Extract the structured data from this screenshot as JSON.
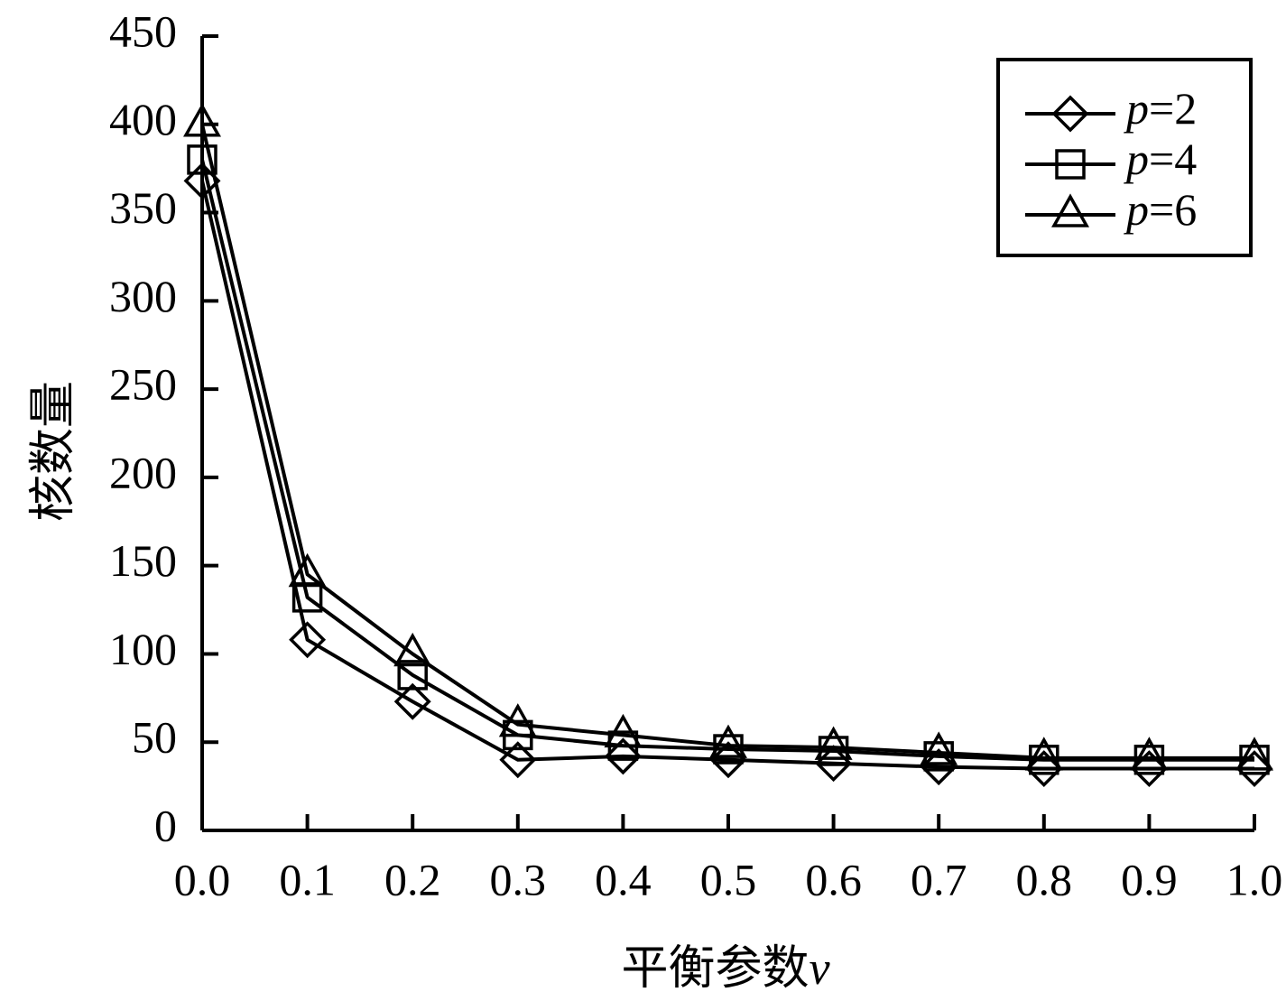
{
  "chart_data": {
    "type": "line",
    "xlabel_main": "平衡参数",
    "xlabel_var": "v",
    "ylabel": "核数量",
    "x": [
      0.0,
      0.1,
      0.2,
      0.3,
      0.4,
      0.5,
      0.6,
      0.7,
      0.8,
      0.9,
      1.0
    ],
    "x_tick_labels": [
      "0.0",
      "0.1",
      "0.2",
      "0.3",
      "0.4",
      "0.5",
      "0.6",
      "0.7",
      "0.8",
      "0.9",
      "1.0"
    ],
    "xlim": [
      0.0,
      1.0
    ],
    "ylim": [
      0,
      450
    ],
    "y_ticks": [
      0,
      50,
      100,
      150,
      200,
      250,
      300,
      350,
      400,
      450
    ],
    "y_tick_labels": [
      "0",
      "50",
      "100",
      "150",
      "200",
      "250",
      "300",
      "350",
      "400",
      "450"
    ],
    "grid": false,
    "legend_position": "top-right",
    "series": [
      {
        "name_var": "p",
        "name_rest": "=2",
        "marker": "diamond",
        "values": [
          368,
          108,
          73,
          40,
          42,
          40,
          38,
          36,
          35,
          35,
          35
        ]
      },
      {
        "name_var": "p",
        "name_rest": "=4",
        "marker": "square",
        "values": [
          380,
          132,
          88,
          54,
          48,
          46,
          45,
          42,
          40,
          40,
          40
        ]
      },
      {
        "name_var": "p",
        "name_rest": "=6",
        "marker": "triangle",
        "values": [
          400,
          145,
          100,
          60,
          54,
          48,
          47,
          44,
          41,
          41,
          41
        ]
      }
    ]
  }
}
